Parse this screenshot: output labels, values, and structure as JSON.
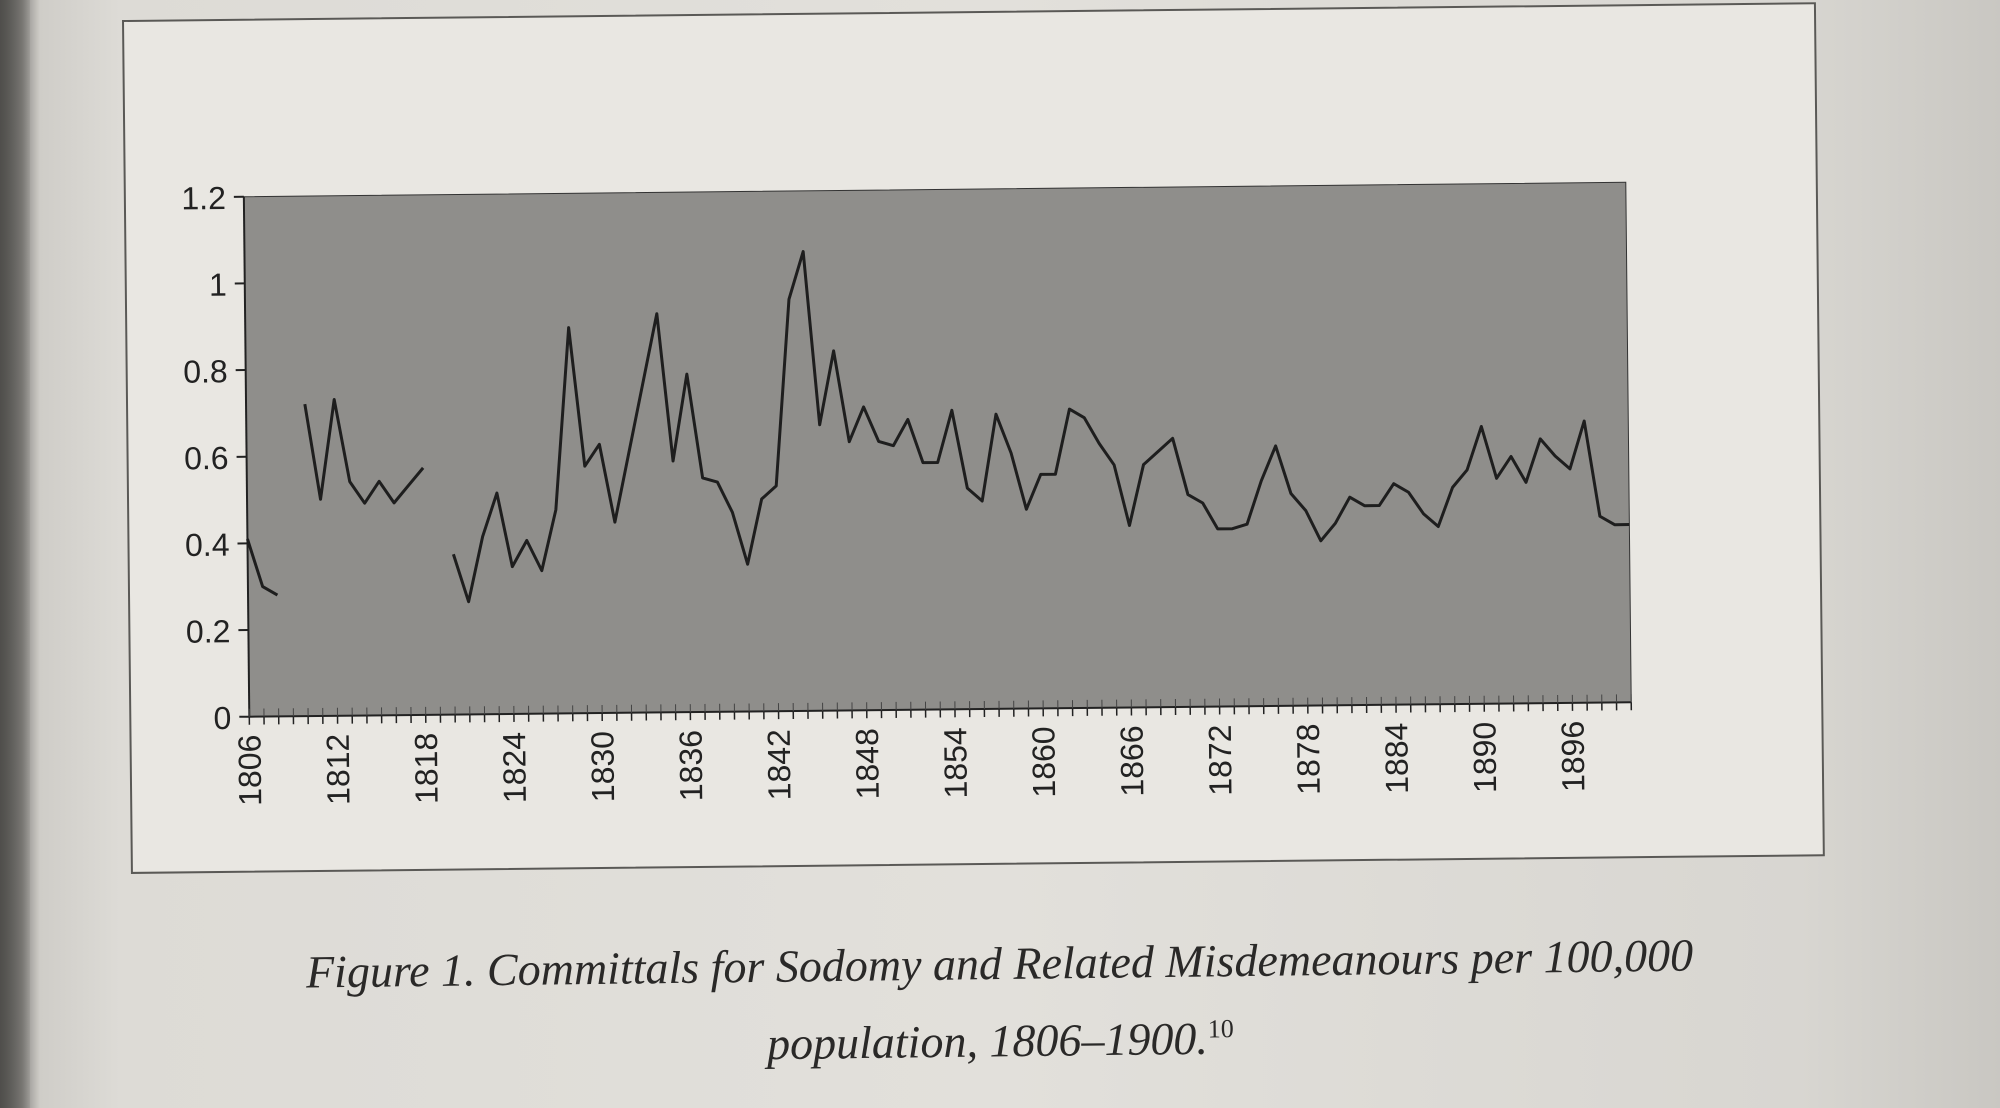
{
  "chart_data": {
    "type": "line",
    "title": "",
    "xlabel": "",
    "ylabel": "",
    "xlim": [
      1806,
      1900
    ],
    "ylim": [
      0,
      1.2
    ],
    "yticks": [
      "0",
      "0.2",
      "0.4",
      "0.6",
      "0.8",
      "1",
      "1.2"
    ],
    "xticks": [
      "1806",
      "1812",
      "1818",
      "1824",
      "1830",
      "1836",
      "1842",
      "1848",
      "1854",
      "1860",
      "1866",
      "1872",
      "1878",
      "1884",
      "1890",
      "1896"
    ],
    "grid": false,
    "legend": "none",
    "colors": {
      "plot_bg": "#8f8e8b",
      "line": "#1e1e1e",
      "frame_bg": "#e9e7e2"
    },
    "series": [
      {
        "segments": [
          {
            "x": [
              1806,
              1807,
              1808
            ],
            "y": [
              0.41,
              0.3,
              0.28
            ]
          },
          {
            "x": [
              1810,
              1811,
              1812,
              1813,
              1814,
              1815,
              1816,
              1817,
              1818
            ],
            "y": [
              0.72,
              0.5,
              0.73,
              0.54,
              0.49,
              0.54,
              0.49,
              0.53,
              0.57
            ]
          },
          {
            "x": [
              1820,
              1821,
              1822,
              1823,
              1824,
              1825,
              1826,
              1827,
              1828,
              1829,
              1830,
              1831,
              1832,
              1833,
              1834,
              1835,
              1836,
              1837,
              1838,
              1839,
              1840,
              1841,
              1842,
              1843,
              1844,
              1845,
              1846,
              1847,
              1848,
              1849,
              1850,
              1851,
              1852,
              1853,
              1854,
              1855,
              1856,
              1857,
              1858,
              1859,
              1860,
              1861,
              1862,
              1863,
              1864,
              1865,
              1866,
              1867,
              1868,
              1869,
              1870,
              1871,
              1872,
              1873,
              1874,
              1875,
              1876,
              1877,
              1878,
              1879,
              1880,
              1881,
              1882,
              1883,
              1884,
              1885,
              1886,
              1887,
              1888,
              1889,
              1890,
              1891,
              1892,
              1893,
              1894,
              1895,
              1896,
              1897,
              1898,
              1899,
              1900
            ],
            "y": [
              0.37,
              0.26,
              0.41,
              0.51,
              0.34,
              0.4,
              0.33,
              0.47,
              0.89,
              0.57,
              0.62,
              0.44,
              0.6,
              0.76,
              0.92,
              0.58,
              0.78,
              0.54,
              0.53,
              0.46,
              0.34,
              0.49,
              0.52,
              0.95,
              1.06,
              0.66,
              0.83,
              0.62,
              0.7,
              0.62,
              0.61,
              0.67,
              0.57,
              0.57,
              0.69,
              0.51,
              0.48,
              0.68,
              0.59,
              0.46,
              0.54,
              0.54,
              0.69,
              0.67,
              0.61,
              0.56,
              0.42,
              0.56,
              0.59,
              0.62,
              0.49,
              0.47,
              0.41,
              0.41,
              0.42,
              0.52,
              0.6,
              0.49,
              0.45,
              0.38,
              0.42,
              0.48,
              0.46,
              0.46,
              0.51,
              0.49,
              0.44,
              0.41,
              0.5,
              0.54,
              0.64,
              0.52,
              0.57,
              0.51,
              0.61,
              0.57,
              0.54,
              0.65,
              0.43,
              0.41,
              0.41
            ]
          }
        ]
      }
    ]
  },
  "caption": {
    "line1": "Figure 1. Committals for Sodomy and Related Misdemeanours per 100,000",
    "line2": "population, 1806–1900.",
    "footnote": "10"
  }
}
